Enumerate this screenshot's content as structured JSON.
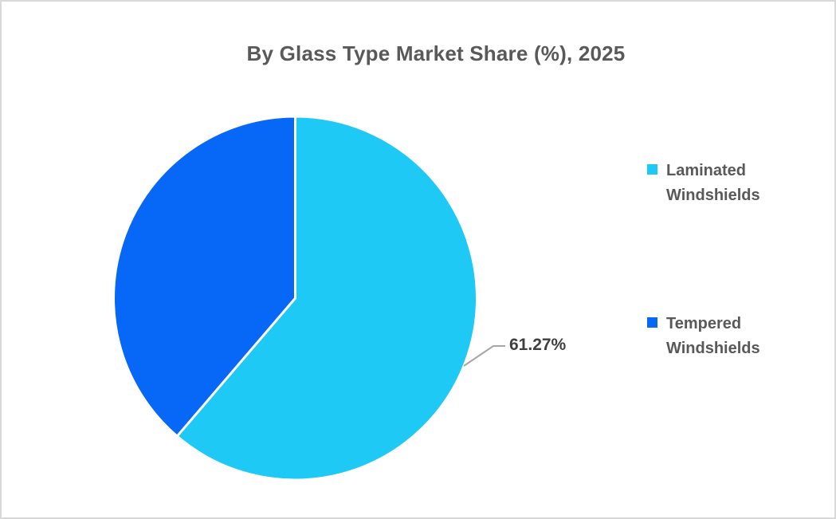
{
  "frame": {
    "background_color": "#ffffff",
    "border_color": "#d9d9d9"
  },
  "title": "By Glass Type Market Share (%), 2025",
  "chart_data": {
    "type": "pie",
    "title": "By Glass Type Market Share (%), 2025",
    "labels": [
      "Laminated Windshields",
      "Tempered Windshields"
    ],
    "values": [
      61.27,
      38.73
    ],
    "total": 100,
    "colors": [
      "#1EC9F5",
      "#0768F8"
    ],
    "slice_separator_color": "#ffffff",
    "start_angle_deg": 0,
    "direction": "clockwise",
    "legend_position": "right",
    "data_labels": [
      {
        "slice": "Laminated Windshields",
        "text": "61.27%",
        "leader_line_color": "#A6A6A6"
      }
    ]
  },
  "legend": {
    "items": [
      {
        "label": "Laminated Windshields",
        "color": "#1EC9F5"
      },
      {
        "label": "Tempered Windshields",
        "color": "#0768F8"
      }
    ]
  },
  "styles": {
    "title_color": "#595959",
    "legend_text_color": "#595959",
    "data_label_color": "#3f3f3f"
  }
}
